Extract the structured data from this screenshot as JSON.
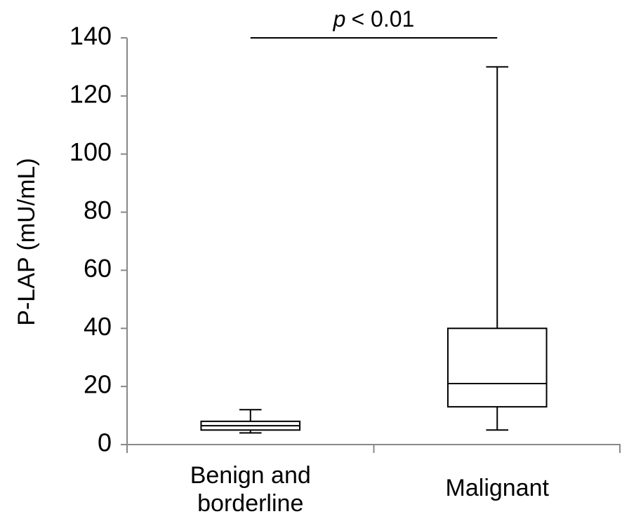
{
  "chart_data": {
    "type": "box",
    "y_label": "P-LAP (mU/mL)",
    "categories": [
      "Benign and borderline",
      "Malignant"
    ],
    "boxes": [
      {
        "min": 4,
        "q1": 5,
        "median": 6.5,
        "q3": 8,
        "max": 12
      },
      {
        "min": 5,
        "q1": 13,
        "median": 21,
        "q3": 40,
        "max": 130
      }
    ],
    "ylim": [
      0,
      140
    ],
    "yticks": [
      0,
      20,
      40,
      60,
      80,
      100,
      120,
      140
    ],
    "color": "#000000",
    "box_fill": "#ffffff",
    "grid": false,
    "annotation": {
      "symbol": "p",
      "text": "< 0.01",
      "level": 140
    }
  }
}
